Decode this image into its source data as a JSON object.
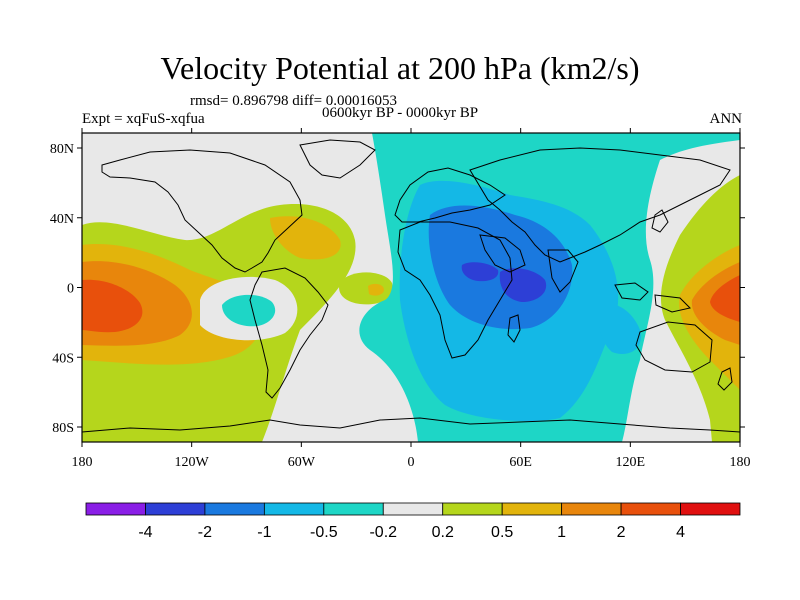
{
  "title": "Velocity Potential at 200 hPa (km2/s)",
  "stats": "rmsd= 0.896798 diff= 0.00016053",
  "experiment": "Expt = xqFuS-xqfua",
  "period": "0600kyr BP - 0000kyr BP",
  "season": "ANN",
  "axes": {
    "x_ticks": [
      "180",
      "120W",
      "60W",
      "0",
      "60E",
      "120E",
      "180"
    ],
    "y_ticks": [
      "80N",
      "40N",
      "0",
      "40S",
      "80S"
    ]
  },
  "colorbar": {
    "labels": [
      "-4",
      "-2",
      "-1",
      "-0.5",
      "-0.2",
      "0.2",
      "0.5",
      "1",
      "2",
      "4"
    ],
    "colors": [
      "#8a1ee6",
      "#2d3fd6",
      "#1a79df",
      "#14b8e6",
      "#1ed6c6",
      "#e8e8e8",
      "#b5d61c",
      "#e2b40c",
      "#e8860c",
      "#e8500c",
      "#e01010"
    ]
  },
  "chart_data": {
    "type": "heatmap",
    "title": "Velocity Potential at 200 hPa (km2/s)",
    "x_range": [
      -180,
      180
    ],
    "y_range": [
      -90,
      90
    ],
    "levels": [
      -4,
      -2,
      -1,
      -0.5,
      -0.2,
      0.2,
      0.5,
      1,
      2,
      4
    ],
    "regions": [
      {
        "name": "",
        "level": "-2 to -4",
        "lon": 40,
        "lat": 10
      },
      {
        "name": "",
        "level": "2 to 4",
        "lon": -170,
        "lat": -5
      },
      {
        "name": "",
        "level": "2 to 4",
        "lon": 170,
        "lat": 0
      }
    ]
  }
}
